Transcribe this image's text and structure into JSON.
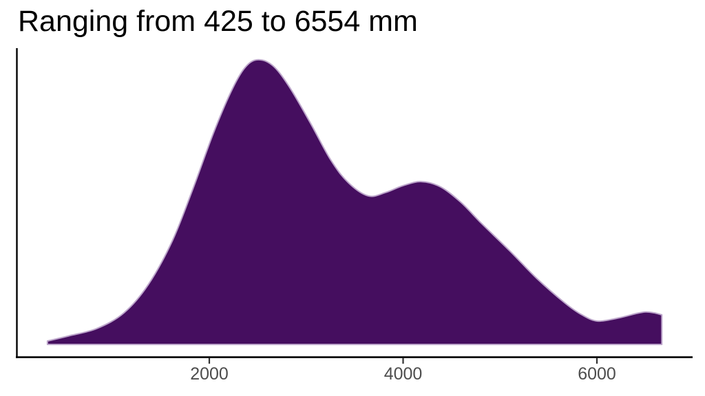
{
  "title": "Ranging from 425 to 6554 mm",
  "chart_data": {
    "type": "area",
    "subtype": "density",
    "title": "Ranging from 425 to 6554 mm",
    "xlabel": "",
    "ylabel": "",
    "x_unit": "mm",
    "x_ticks": [
      2000,
      4000,
      6000
    ],
    "x_domain": [
      330,
      6670
    ],
    "data_range_min": 425,
    "data_range_max": 6554,
    "ylim": [
      0,
      1.08
    ],
    "grid": false,
    "legend": false,
    "fill_color": "#450e5f",
    "stroke_color": "#bda6cb",
    "axis_color": "#000000",
    "tick_color": "#333333",
    "tick_label_color": "#4d4d4d",
    "points": [
      {
        "x": 330,
        "y": 0.012
      },
      {
        "x": 550,
        "y": 0.03
      },
      {
        "x": 840,
        "y": 0.056
      },
      {
        "x": 1120,
        "y": 0.111
      },
      {
        "x": 1370,
        "y": 0.21
      },
      {
        "x": 1620,
        "y": 0.365
      },
      {
        "x": 1830,
        "y": 0.546
      },
      {
        "x": 2040,
        "y": 0.74
      },
      {
        "x": 2220,
        "y": 0.885
      },
      {
        "x": 2360,
        "y": 0.969
      },
      {
        "x": 2490,
        "y": 1.0
      },
      {
        "x": 2650,
        "y": 0.981
      },
      {
        "x": 2820,
        "y": 0.908
      },
      {
        "x": 3040,
        "y": 0.78
      },
      {
        "x": 3250,
        "y": 0.65
      },
      {
        "x": 3430,
        "y": 0.57
      },
      {
        "x": 3640,
        "y": 0.522
      },
      {
        "x": 3820,
        "y": 0.534
      },
      {
        "x": 4000,
        "y": 0.558
      },
      {
        "x": 4190,
        "y": 0.572
      },
      {
        "x": 4390,
        "y": 0.553
      },
      {
        "x": 4600,
        "y": 0.498
      },
      {
        "x": 4810,
        "y": 0.425
      },
      {
        "x": 5100,
        "y": 0.329
      },
      {
        "x": 5380,
        "y": 0.232
      },
      {
        "x": 5665,
        "y": 0.147
      },
      {
        "x": 5845,
        "y": 0.104
      },
      {
        "x": 6010,
        "y": 0.082
      },
      {
        "x": 6235,
        "y": 0.094
      },
      {
        "x": 6410,
        "y": 0.109
      },
      {
        "x": 6505,
        "y": 0.114
      },
      {
        "x": 6590,
        "y": 0.111
      },
      {
        "x": 6670,
        "y": 0.104
      }
    ]
  }
}
